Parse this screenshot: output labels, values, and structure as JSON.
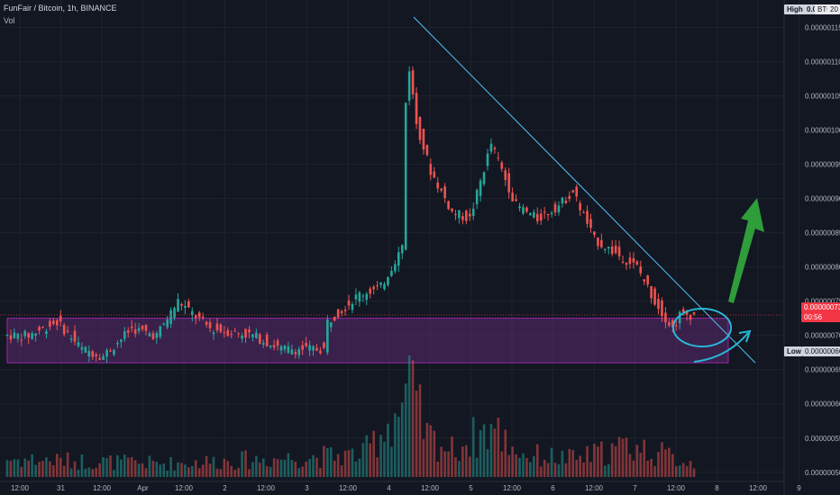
{
  "header": {
    "symbol": "FunFair / Bitcoin, 1h, BINANCE",
    "vol_label": "Vol"
  },
  "price_scale": {
    "labels": [
      "0.00000115",
      "0.00000110",
      "0.00000105",
      "0.00000100",
      "0.00000095",
      "0.00000090",
      "0.00000085",
      "0.00000080",
      "0.00000075",
      "0.00000070",
      "0.00000065",
      "0.00000060",
      "0.00000055",
      "0.00000050"
    ],
    "high_tag": "High",
    "high_value": "0.0",
    "currency": "BTC",
    "currency_extra": "20",
    "current_price": "0.00000073",
    "countdown": "00:56",
    "low_tag": "Low",
    "low_value": "0.00000066"
  },
  "time_axis": {
    "labels": [
      "12:00",
      "31",
      "12:00",
      "Apr",
      "12:00",
      "2",
      "12:00",
      "3",
      "12:00",
      "4",
      "12:00",
      "5",
      "12:00",
      "6",
      "12:00",
      "7",
      "12:00",
      "8",
      "12:00",
      "9"
    ]
  },
  "colors": {
    "background": "#131722",
    "grid": "#1e222d",
    "up": "#26a69a",
    "down": "#ef5350",
    "zone_fill": "#5a2a6e",
    "zone_border": "#9c27b0",
    "trendline": "#4fc3f7",
    "arrow": "#2e9d3a",
    "current_price": "#f23645",
    "ellipse": "#29b6d8"
  },
  "chart_data": {
    "type": "candlestick",
    "symbol": "FunFair / Bitcoin",
    "interval": "1h",
    "exchange": "BINANCE",
    "y_range": [
      4.8e-07,
      1.19e-06
    ],
    "high": "0.00000117",
    "low": "0.00000066",
    "last": 7.3e-07,
    "support_zone": [
      6.6e-07,
      7.25e-07
    ],
    "trendline": {
      "from": 1.165e-06,
      "to": 7.2e-07
    },
    "price_path": [
      [
        0,
        7e-07
      ],
      [
        7,
        7e-07
      ],
      [
        15,
        7.2e-07
      ],
      [
        22,
        6.8e-07
      ],
      [
        28,
        6.7e-07
      ],
      [
        36,
        7.1e-07
      ],
      [
        43,
        7e-07
      ],
      [
        49,
        7.5e-07
      ],
      [
        58,
        7.1e-07
      ],
      [
        70,
        7e-07
      ],
      [
        78,
        6.8e-07
      ],
      [
        90,
        6.8e-07
      ],
      [
        91,
        7.2e-07
      ],
      [
        100,
        7.6e-07
      ],
      [
        106,
        7.7e-07
      ],
      [
        112,
        8.3e-07
      ],
      [
        113,
        1.04e-06
      ],
      [
        114,
        1.09e-06
      ],
      [
        116,
        1.01e-06
      ],
      [
        120,
        9.4e-07
      ],
      [
        126,
        8.8e-07
      ],
      [
        131,
        8.7e-07
      ],
      [
        137,
        9.8e-07
      ],
      [
        144,
        8.9e-07
      ],
      [
        150,
        8.7e-07
      ],
      [
        156,
        8.9e-07
      ],
      [
        160,
        9.1e-07
      ],
      [
        166,
        8.4e-07
      ],
      [
        172,
        8.2e-07
      ],
      [
        178,
        8e-07
      ],
      [
        183,
        7.5e-07
      ],
      [
        188,
        7.1e-07
      ],
      [
        190,
        7.3e-07
      ],
      [
        193,
        7.3e-07
      ]
    ],
    "volume_profile": [
      [
        0,
        0.2
      ],
      [
        45,
        0.15
      ],
      [
        100,
        0.25
      ],
      [
        111,
        0.8
      ],
      [
        113,
        1.0
      ],
      [
        118,
        0.45
      ],
      [
        125,
        0.3
      ],
      [
        136,
        0.55
      ],
      [
        145,
        0.25
      ],
      [
        160,
        0.2
      ],
      [
        175,
        0.35
      ],
      [
        193,
        0.15
      ]
    ]
  }
}
